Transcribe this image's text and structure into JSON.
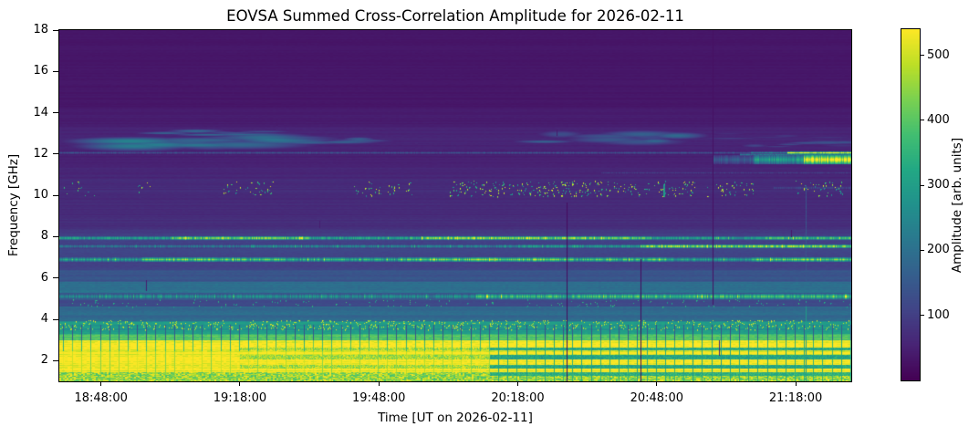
{
  "chart_data": {
    "type": "heatmap",
    "title": "EOVSA Summed Cross-Correlation Amplitude for 2026-02-11",
    "colormap": "viridis",
    "colormap_stops": [
      "#440154",
      "#482475",
      "#414487",
      "#355f8d",
      "#2a788e",
      "#21918c",
      "#22a884",
      "#42be71",
      "#7ad151",
      "#bddf26",
      "#fde725"
    ],
    "x_axis": {
      "label": "Time [UT on 2026-02-11]",
      "start_hours": 18.65,
      "end_hours": 21.5,
      "ticks": [
        {
          "hours": 18.8,
          "label": "18:48:00"
        },
        {
          "hours": 19.3,
          "label": "19:18:00"
        },
        {
          "hours": 19.8,
          "label": "19:48:00"
        },
        {
          "hours": 20.3,
          "label": "20:18:00"
        },
        {
          "hours": 20.8,
          "label": "20:48:00"
        },
        {
          "hours": 21.3,
          "label": "21:18:00"
        }
      ]
    },
    "y_axis": {
      "label": "Frequency [GHz]",
      "min_ghz": 1,
      "max_ghz": 18,
      "ticks": [
        2,
        4,
        6,
        8,
        10,
        12,
        14,
        16,
        18
      ]
    },
    "colorbar": {
      "label": "Amplitude [arb. units]",
      "min": 0,
      "max": 540,
      "ticks": [
        100,
        200,
        300,
        400,
        500
      ]
    },
    "base_profile": [
      {
        "f": [
          14.2,
          18.0
        ],
        "amp": 33
      },
      {
        "f": [
          13.3,
          14.2
        ],
        "amp": 42
      },
      {
        "f": [
          12.2,
          13.3
        ],
        "amp": 56
      },
      {
        "f": [
          11.4,
          12.2
        ],
        "amp": 50
      },
      {
        "f": [
          10.8,
          11.4
        ],
        "amp": 57
      },
      {
        "f": [
          9.0,
          10.8
        ],
        "amp": 66
      },
      {
        "f": [
          8.35,
          9.0
        ],
        "amp": 73
      },
      {
        "f": [
          8.05,
          8.35
        ],
        "amp": 92
      },
      {
        "f": [
          7.45,
          8.05
        ],
        "amp": 102
      },
      {
        "f": [
          7.05,
          7.45
        ],
        "amp": 110
      },
      {
        "f": [
          6.4,
          7.05
        ],
        "amp": 103
      },
      {
        "f": [
          5.8,
          6.4
        ],
        "amp": 140
      },
      {
        "f": [
          5.3,
          5.8
        ],
        "amp": 198
      },
      {
        "f": [
          4.95,
          5.3
        ],
        "amp": 150
      },
      {
        "f": [
          4.6,
          4.95
        ],
        "amp": 122
      },
      {
        "f": [
          3.9,
          4.6
        ],
        "amp": 185
      },
      {
        "f": [
          3.3,
          3.9
        ],
        "amp": 285
      },
      {
        "f": [
          3.0,
          3.3
        ],
        "amp": 380
      },
      {
        "f": [
          1.0,
          3.0
        ],
        "amp": 540
      }
    ],
    "features": [
      {
        "type": "band",
        "mode": "mix",
        "t": [
          18.65,
          21.5
        ],
        "f": [
          1.0,
          1.45
        ],
        "amp": [
          370,
          540
        ]
      },
      {
        "type": "stripes",
        "t": [
          19.3,
          20.2
        ],
        "rows": [
          [
            2.52,
            2.64,
            470
          ],
          [
            2.08,
            2.26,
            465
          ],
          [
            1.6,
            1.78,
            470
          ]
        ]
      },
      {
        "type": "stripes",
        "t": [
          20.2,
          21.5
        ],
        "rows": [
          [
            2.52,
            2.64,
            330
          ],
          [
            2.08,
            2.26,
            315
          ],
          [
            1.6,
            1.78,
            320
          ],
          [
            1.26,
            1.44,
            340
          ]
        ]
      },
      {
        "type": "hline",
        "f": [
          7.87,
          8.02
        ],
        "speckle": true,
        "segments": [
          [
            18.65,
            19.05,
            330
          ],
          [
            19.05,
            19.55,
            470
          ],
          [
            19.55,
            19.95,
            345
          ],
          [
            19.95,
            20.52,
            490
          ],
          [
            20.52,
            20.78,
            450
          ],
          [
            20.78,
            21.18,
            330
          ],
          [
            21.18,
            21.5,
            410
          ]
        ]
      },
      {
        "type": "hline",
        "f": [
          7.5,
          7.63
        ],
        "speckle": true,
        "segments": [
          [
            18.65,
            19.3,
            225
          ],
          [
            19.3,
            20.3,
            255
          ],
          [
            20.3,
            20.74,
            310
          ],
          [
            20.74,
            21.5,
            480
          ]
        ]
      },
      {
        "type": "hline",
        "f": [
          6.85,
          7.0
        ],
        "speckle": true,
        "segments": [
          [
            18.65,
            18.95,
            300
          ],
          [
            18.95,
            19.45,
            400
          ],
          [
            19.45,
            19.9,
            335
          ],
          [
            19.9,
            20.45,
            420
          ],
          [
            20.45,
            20.85,
            375
          ],
          [
            20.85,
            21.15,
            305
          ],
          [
            21.15,
            21.5,
            415
          ]
        ]
      },
      {
        "type": "hline",
        "f": [
          5.02,
          5.24
        ],
        "speckle": true,
        "segments": [
          [
            18.65,
            20.15,
            265
          ],
          [
            20.15,
            21.5,
            375
          ]
        ]
      },
      {
        "type": "hline",
        "f": [
          12.04,
          12.14
        ],
        "segments": [
          [
            18.65,
            21.14,
            130
          ],
          [
            21.14,
            21.27,
            220
          ],
          [
            21.27,
            21.5,
            540
          ]
        ]
      },
      {
        "type": "hline",
        "f": [
          11.95,
          12.04
        ],
        "segments": [
          [
            21.1,
            21.5,
            200
          ]
        ]
      },
      {
        "type": "hline",
        "f": [
          11.55,
          11.95
        ],
        "segments": [
          [
            21.0,
            21.15,
            160
          ],
          [
            21.15,
            21.33,
            310
          ],
          [
            21.33,
            21.5,
            540
          ]
        ]
      },
      {
        "type": "hline",
        "f": [
          11.05,
          11.16
        ],
        "segments": [
          [
            20.6,
            21.5,
            92
          ]
        ]
      },
      {
        "type": "hline",
        "f": [
          10.32,
          10.44
        ],
        "segments": [
          [
            21.22,
            21.5,
            115
          ]
        ]
      },
      {
        "type": "cloud",
        "t": [
          18.98,
          19.4
        ],
        "f": [
          12.92,
          13.14
        ],
        "amp": 195,
        "blobs": 10
      },
      {
        "type": "cloud",
        "t": [
          18.87,
          19.62
        ],
        "f": [
          12.38,
          12.85
        ],
        "amp": 245,
        "blobs": 16
      },
      {
        "type": "cloud",
        "t": [
          19.35,
          19.8
        ],
        "f": [
          12.5,
          12.78
        ],
        "amp": 180,
        "blobs": 8
      },
      {
        "type": "cloud",
        "t": [
          20.37,
          20.88
        ],
        "f": [
          12.6,
          13.02
        ],
        "amp": 190,
        "blobs": 12
      },
      {
        "type": "cloud",
        "t": [
          21.15,
          21.49
        ],
        "f": [
          12.38,
          12.62
        ],
        "amp": 150,
        "blobs": 8
      },
      {
        "type": "cloud",
        "t": [
          21.02,
          21.45
        ],
        "f": [
          12.78,
          13.0
        ],
        "amp": 110,
        "blobs": 7
      },
      {
        "type": "speckles",
        "f": [
          9.95,
          10.68
        ],
        "palette": "mixed",
        "clusters": [
          [
            18.66,
            18.8,
            0.22
          ],
          [
            18.9,
            18.99,
            0.18
          ],
          [
            19.22,
            19.42,
            0.45
          ],
          [
            19.7,
            19.93,
            0.4
          ],
          [
            20.05,
            20.6,
            0.85
          ],
          [
            20.6,
            20.95,
            0.6
          ],
          [
            20.98,
            21.16,
            0.45
          ],
          [
            21.3,
            21.47,
            0.5
          ]
        ]
      },
      {
        "type": "speckles",
        "f": [
          4.6,
          4.95
        ],
        "palette": "green",
        "clusters": [
          [
            18.65,
            21.5,
            0.12
          ]
        ]
      },
      {
        "type": "speckles",
        "f": [
          3.5,
          3.95
        ],
        "palette": "yellow",
        "clusters": [
          [
            18.65,
            21.5,
            0.55
          ]
        ]
      },
      {
        "type": "vcal",
        "f": [
          1.0,
          3.0
        ],
        "t": [
          18.65,
          20.2
        ],
        "period_min": 2,
        "amp": 480
      },
      {
        "type": "vcal",
        "f": [
          2.45,
          3.0
        ],
        "t": [
          18.65,
          20.2
        ],
        "period_min": 2,
        "amp": 380
      },
      {
        "type": "vcal",
        "f": [
          1.0,
          3.0
        ],
        "t": [
          20.2,
          21.5
        ],
        "period_min": 2,
        "amp": 330
      },
      {
        "type": "vcal",
        "f": [
          3.0,
          3.85
        ],
        "t": [
          20.55,
          21.5
        ],
        "period_min": 2,
        "amp": 285
      },
      {
        "type": "vticks",
        "f": [
          3.0,
          3.75
        ],
        "t": [
          18.65,
          21.5
        ],
        "period_min": 2,
        "amp": 150
      },
      {
        "type": "vline",
        "t": 21.335,
        "f": [
          1.0,
          4.6
        ],
        "amp": 295,
        "mode": "set"
      },
      {
        "type": "vline",
        "t": 21.335,
        "f": [
          4.6,
          10.5
        ],
        "amp": 140,
        "mode": "max"
      },
      {
        "type": "vline",
        "t": 20.823,
        "f": [
          9.9,
          10.55
        ],
        "amp": 300,
        "mode": "max",
        "w": 2
      },
      {
        "type": "vline",
        "t": 18.962,
        "f": [
          5.35,
          5.9
        ],
        "amp": 45,
        "mode": "set"
      },
      {
        "type": "vline",
        "t": 21.023,
        "f": [
          2.25,
          3.0
        ],
        "amp": 60,
        "mode": "set"
      },
      {
        "type": "vline",
        "t": 21.283,
        "f": [
          7.98,
          8.33
        ],
        "amp": 35,
        "mode": "set"
      },
      {
        "type": "vline",
        "t": 19.431,
        "f": [
          13.35,
          13.65
        ],
        "amp": 38,
        "mode": "set"
      },
      {
        "type": "vline",
        "t": 20.439,
        "f": [
          12.9,
          13.2
        ],
        "amp": 40,
        "mode": "set"
      },
      {
        "type": "vline",
        "t": 19.586,
        "f": [
          8.42,
          8.78
        ],
        "amp": 45,
        "mode": "set"
      },
      {
        "type": "vline",
        "t": 20.897,
        "f": [
          15.2,
          15.5
        ],
        "amp": 30,
        "mode": "set"
      },
      {
        "type": "vline",
        "t": 20.475,
        "f": [
          1.0,
          9.66
        ],
        "amp": 16,
        "mode": "set"
      },
      {
        "type": "vline",
        "t": 20.741,
        "f": [
          1.0,
          6.92
        ],
        "amp": 16,
        "mode": "set"
      },
      {
        "type": "vline",
        "t": 21.0,
        "f": [
          4.72,
          18.0
        ],
        "amp": 24,
        "mode": "set"
      }
    ]
  }
}
